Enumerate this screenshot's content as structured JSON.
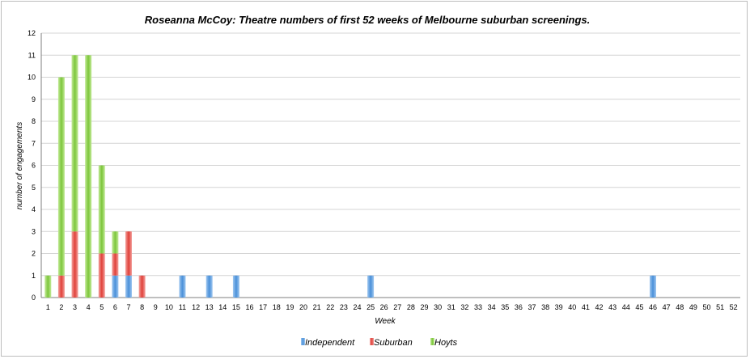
{
  "chart_data": {
    "type": "bar",
    "stacked": true,
    "title": "Roseanna McCoy: Theatre numbers of first 52 weeks of Melbourne suburban screenings.",
    "xlabel": "Week",
    "ylabel": "number of engagements",
    "ylim": [
      0,
      12
    ],
    "yticks": [
      0,
      1,
      2,
      3,
      4,
      5,
      6,
      7,
      8,
      9,
      10,
      11,
      12
    ],
    "grid": true,
    "legend_position": "bottom",
    "categories": [
      "1",
      "2",
      "3",
      "4",
      "5",
      "6",
      "7",
      "8",
      "9",
      "10",
      "11",
      "12",
      "13",
      "14",
      "15",
      "16",
      "17",
      "18",
      "19",
      "20",
      "21",
      "22",
      "23",
      "24",
      "25",
      "26",
      "27",
      "28",
      "29",
      "30",
      "31",
      "32",
      "33",
      "34",
      "35",
      "36",
      "37",
      "38",
      "39",
      "40",
      "41",
      "42",
      "43",
      "44",
      "45",
      "46",
      "47",
      "48",
      "49",
      "50",
      "51",
      "52"
    ],
    "series": [
      {
        "name": "Independent",
        "color": "#4a90d9",
        "values": [
          0,
          0,
          0,
          0,
          0,
          1,
          1,
          0,
          0,
          0,
          1,
          0,
          1,
          0,
          1,
          0,
          0,
          0,
          0,
          0,
          0,
          0,
          0,
          0,
          1,
          0,
          0,
          0,
          0,
          0,
          0,
          0,
          0,
          0,
          0,
          0,
          0,
          0,
          0,
          0,
          0,
          0,
          0,
          0,
          0,
          1,
          0,
          0,
          0,
          0,
          0,
          0
        ]
      },
      {
        "name": "Suburban",
        "color": "#e0413a",
        "values": [
          0,
          1,
          3,
          0,
          2,
          1,
          2,
          1,
          0,
          0,
          0,
          0,
          0,
          0,
          0,
          0,
          0,
          0,
          0,
          0,
          0,
          0,
          0,
          0,
          0,
          0,
          0,
          0,
          0,
          0,
          0,
          0,
          0,
          0,
          0,
          0,
          0,
          0,
          0,
          0,
          0,
          0,
          0,
          0,
          0,
          0,
          0,
          0,
          0,
          0,
          0,
          0
        ]
      },
      {
        "name": "Hoyts",
        "color": "#7cc63b",
        "values": [
          1,
          9,
          8,
          11,
          4,
          1,
          0,
          0,
          0,
          0,
          0,
          0,
          0,
          0,
          0,
          0,
          0,
          0,
          0,
          0,
          0,
          0,
          0,
          0,
          0,
          0,
          0,
          0,
          0,
          0,
          0,
          0,
          0,
          0,
          0,
          0,
          0,
          0,
          0,
          0,
          0,
          0,
          0,
          0,
          0,
          0,
          0,
          0,
          0,
          0,
          0,
          0
        ]
      }
    ]
  }
}
